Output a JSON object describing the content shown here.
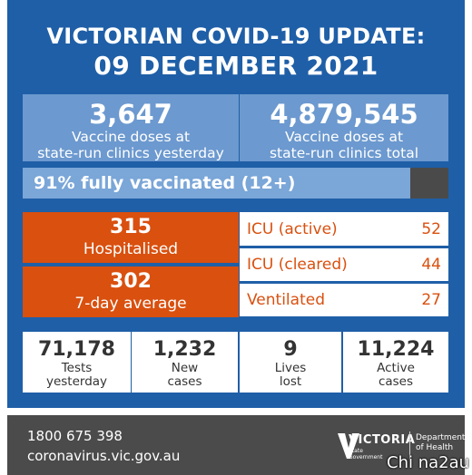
{
  "header": {
    "title_line1": "VICTORIAN COVID-19 UPDATE:",
    "title_line2": "09 DECEMBER 2021"
  },
  "doses_yesterday": {
    "value": "3,647",
    "label_line1": "Vaccine doses at",
    "label_line2": "state-run clinics yesterday"
  },
  "doses_total": {
    "value": "4,879,545",
    "label_line1": "Vaccine doses at",
    "label_line2": "state-run clinics total"
  },
  "vaccination": {
    "text": "91% fully vaccinated (12+)",
    "fraction": 0.91
  },
  "hospitalised": {
    "value": "315",
    "label": "Hospitalised"
  },
  "seven_day": {
    "value": "302",
    "label": "7-day average"
  },
  "icu_rows": [
    {
      "label": "ICU (active)",
      "value": "52"
    },
    {
      "label": "ICU (cleared)",
      "value": "44"
    },
    {
      "label": "Ventilated",
      "value": "27"
    }
  ],
  "bottom_stats": [
    {
      "value": "71,178",
      "label_line1": "Tests",
      "label_line2": "yesterday"
    },
    {
      "value": "1,232",
      "label_line1": "New",
      "label_line2": "cases"
    },
    {
      "value": "9",
      "label_line1": "Lives",
      "label_line2": "lost"
    },
    {
      "value": "11,224",
      "label_line1": "Active",
      "label_line2": "cases"
    }
  ],
  "footer": {
    "phone": "1800 675 398",
    "url": "coronavirus.vic.gov.au",
    "logo_word": "VICTORIA",
    "logo_sub_line1": "State",
    "logo_sub_line2": "Government",
    "dept_line1": "Department",
    "dept_line2": "of Health"
  },
  "watermark": "Chi na2au",
  "colors": {
    "panel_blue": "#1f5fa7",
    "light_blue": "#6c99cf",
    "orange": "#d9500f",
    "footer_grey": "#4b4b4b"
  }
}
